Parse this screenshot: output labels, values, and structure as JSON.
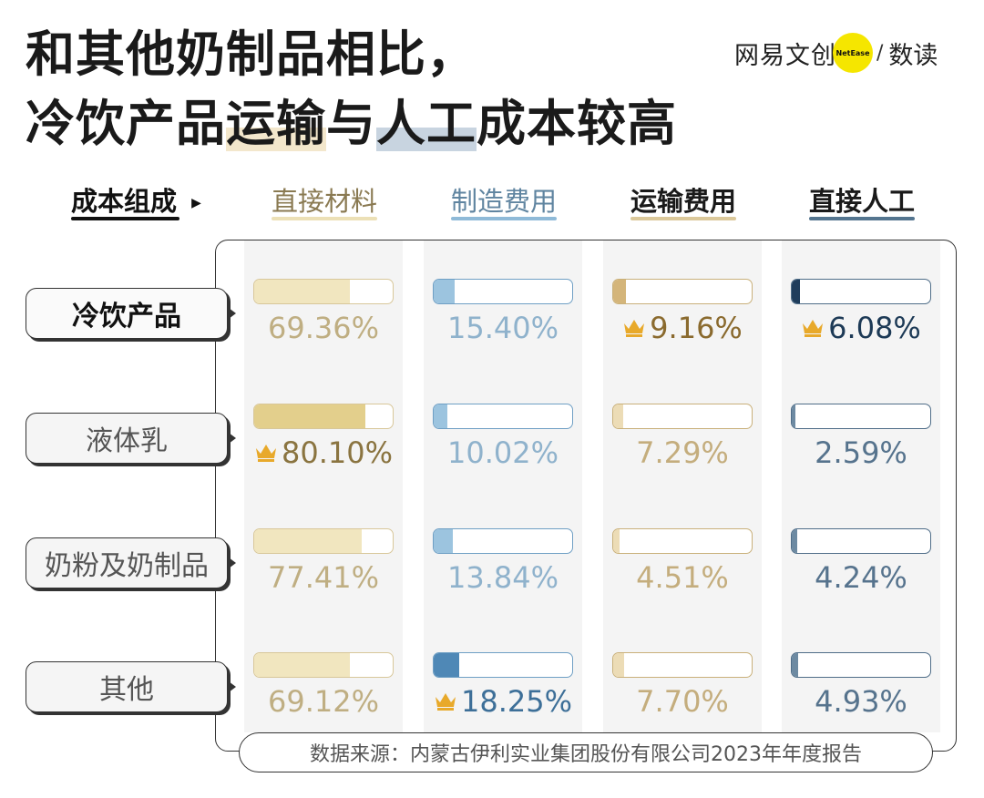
{
  "title": {
    "line1": "和其他奶制品相比，",
    "line2_parts": [
      {
        "text": "冷饮产品",
        "hl": ""
      },
      {
        "text": "运输",
        "hl": "gold"
      },
      {
        "text": "与",
        "hl": ""
      },
      {
        "text": "人工",
        "hl": "blue"
      },
      {
        "text": "成本较高",
        "hl": ""
      }
    ]
  },
  "brand": {
    "left": "网易文创",
    "badge": "NetEase",
    "slash": "/",
    "right": "数读"
  },
  "header": {
    "corner_label": "成本组成",
    "columns": [
      {
        "label": "直接材料",
        "underline": "#ece0b6",
        "text_color": "#8a7a52",
        "weight": "normal"
      },
      {
        "label": "制造费用",
        "underline": "#8fbad8",
        "text_color": "#5f84a0",
        "weight": "normal"
      },
      {
        "label": "运输费用",
        "underline": "#dbc89a",
        "text_color": "#1a1a1a",
        "weight": "bold"
      },
      {
        "label": "直接人工",
        "underline": "#54758f",
        "text_color": "#1a1a1a",
        "weight": "bold"
      }
    ]
  },
  "chart_data": {
    "type": "table",
    "columns": [
      "直接材料",
      "制造费用",
      "运输费用",
      "直接人工"
    ],
    "rows": [
      {
        "label": "冷饮产品",
        "bold": true,
        "values": [
          69.36,
          15.4,
          9.16,
          6.08
        ],
        "display": [
          "69.36%",
          "15.40%",
          "9.16%",
          "6.08%"
        ],
        "crowned": [
          false,
          false,
          true,
          true
        ]
      },
      {
        "label": "液体乳",
        "bold": false,
        "values": [
          80.1,
          10.02,
          7.29,
          2.59
        ],
        "display": [
          "80.10%",
          "10.02%",
          "7.29%",
          "2.59%"
        ],
        "crowned": [
          true,
          false,
          false,
          false
        ]
      },
      {
        "label": "奶粉及奶制品",
        "bold": false,
        "values": [
          77.41,
          13.84,
          4.51,
          4.24
        ],
        "display": [
          "77.41%",
          "13.84%",
          "4.51%",
          "4.24%"
        ],
        "crowned": [
          false,
          false,
          false,
          false
        ]
      },
      {
        "label": "其他",
        "bold": false,
        "values": [
          69.12,
          18.25,
          7.7,
          4.93
        ],
        "display": [
          "69.12%",
          "18.25%",
          "7.70%",
          "4.93%"
        ],
        "crowned": [
          false,
          true,
          false,
          false
        ]
      }
    ],
    "bar_scale_max": 100,
    "colors": {
      "fill": [
        "#f1e6bf",
        "#9cc4df",
        "#ecdcb6",
        "#6d8aa2"
      ],
      "fill_crowned": [
        "#e3cf8c",
        "#4f88b6",
        "#d4b57a",
        "#1f3d5c"
      ],
      "border": [
        "#d8c79a",
        "#6f9fc4",
        "#c9b07a",
        "#4f6d88"
      ],
      "text": [
        "#bfae82",
        "#8fb2cc",
        "#c4ad7d",
        "#56738d"
      ],
      "text_crowned": [
        "#8a7440",
        "#3d6f98",
        "#8a6a2e",
        "#1d3a56"
      ],
      "crown": "#e8a92a"
    }
  },
  "source": "数据来源：内蒙古伊利实业集团股份有限公司2023年年度报告"
}
